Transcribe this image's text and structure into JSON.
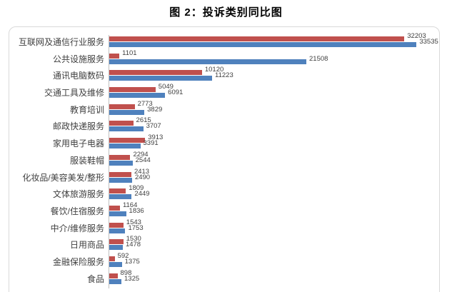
{
  "chart_data": {
    "type": "bar",
    "orientation": "horizontal",
    "title": "图 2：投诉类别同比图",
    "xlabel": "",
    "ylabel": "",
    "xlim": [
      0,
      36000
    ],
    "grid": false,
    "legend": "none",
    "categories": [
      "互联网及通信行业服务",
      "公共设施服务",
      "通讯电脑数码",
      "交通工具及维修",
      "教育培训",
      "邮政快递服务",
      "家用电子电器",
      "服装鞋帽",
      "化妆品/美容美发/整形",
      "文体旅游服务",
      "餐饮/住宿服务",
      "中介/维修服务",
      "日用商品",
      "金融保险服务",
      "食品"
    ],
    "series": [
      {
        "color": "#C0504D",
        "values": [
          32203,
          1101,
          10120,
          5049,
          2773,
          2615,
          3913,
          2294,
          2413,
          1809,
          1164,
          1543,
          1530,
          592,
          898
        ]
      },
      {
        "color": "#4F81BD",
        "values": [
          33535,
          21508,
          11223,
          6091,
          3829,
          3707,
          3391,
          2544,
          2490,
          2449,
          1836,
          1753,
          1478,
          1375,
          1325
        ]
      }
    ],
    "colors": {
      "border": "#d9d9d9",
      "axis_line": "#bfbfbf",
      "label_text": "#3f3f3f",
      "title_text": "#000000"
    }
  }
}
